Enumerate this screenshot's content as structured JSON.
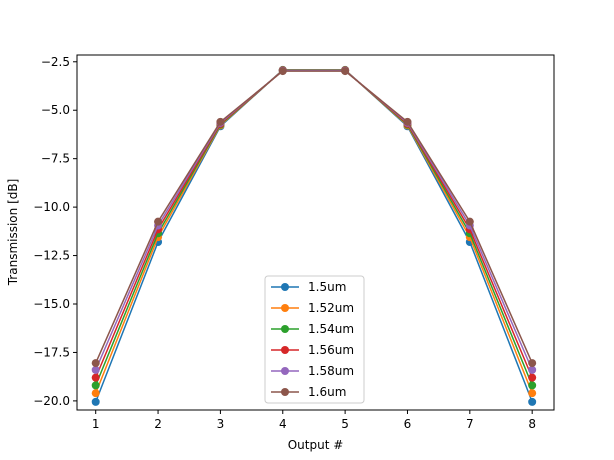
{
  "chart_data": {
    "type": "line",
    "title": "",
    "xlabel": "Output #",
    "ylabel": "Transmission [dB]",
    "x": [
      1,
      2,
      3,
      4,
      5,
      6,
      7,
      8
    ],
    "xlim": [
      0.7,
      8.35
    ],
    "ylim": [
      -20.47,
      -2.15
    ],
    "xticks": [
      1,
      2,
      3,
      4,
      5,
      6,
      7,
      8
    ],
    "yticks": [
      -2.5,
      -5.0,
      -7.5,
      -10.0,
      -12.5,
      -15.0,
      -17.5,
      -20.0
    ],
    "ytick_labels": [
      "−2.5",
      "−5.0",
      "−7.5",
      "−10.0",
      "−12.5",
      "−15.0",
      "−17.5",
      "−20.0"
    ],
    "grid": false,
    "legend_position": "lower center",
    "series": [
      {
        "name": "1.5um",
        "color": "#1f77b4",
        "values": [
          -20.05,
          -11.8,
          -5.83,
          -2.92,
          -2.92,
          -5.83,
          -11.8,
          -20.05
        ]
      },
      {
        "name": "1.52um",
        "color": "#ff7f0e",
        "values": [
          -19.6,
          -11.55,
          -5.78,
          -2.93,
          -2.93,
          -5.78,
          -11.55,
          -19.6
        ]
      },
      {
        "name": "1.54um",
        "color": "#2ca02c",
        "values": [
          -19.2,
          -11.35,
          -5.74,
          -2.94,
          -2.94,
          -5.74,
          -11.35,
          -19.2
        ]
      },
      {
        "name": "1.56um",
        "color": "#d62728",
        "values": [
          -18.8,
          -11.15,
          -5.7,
          -2.95,
          -2.95,
          -5.7,
          -11.15,
          -18.8
        ]
      },
      {
        "name": "1.58um",
        "color": "#9467bd",
        "values": [
          -18.4,
          -10.95,
          -5.65,
          -2.96,
          -2.96,
          -5.65,
          -10.95,
          -18.4
        ]
      },
      {
        "name": "1.6um",
        "color": "#8c564b",
        "values": [
          -18.05,
          -10.75,
          -5.6,
          -2.98,
          -2.98,
          -5.6,
          -10.75,
          -18.05
        ]
      }
    ]
  }
}
